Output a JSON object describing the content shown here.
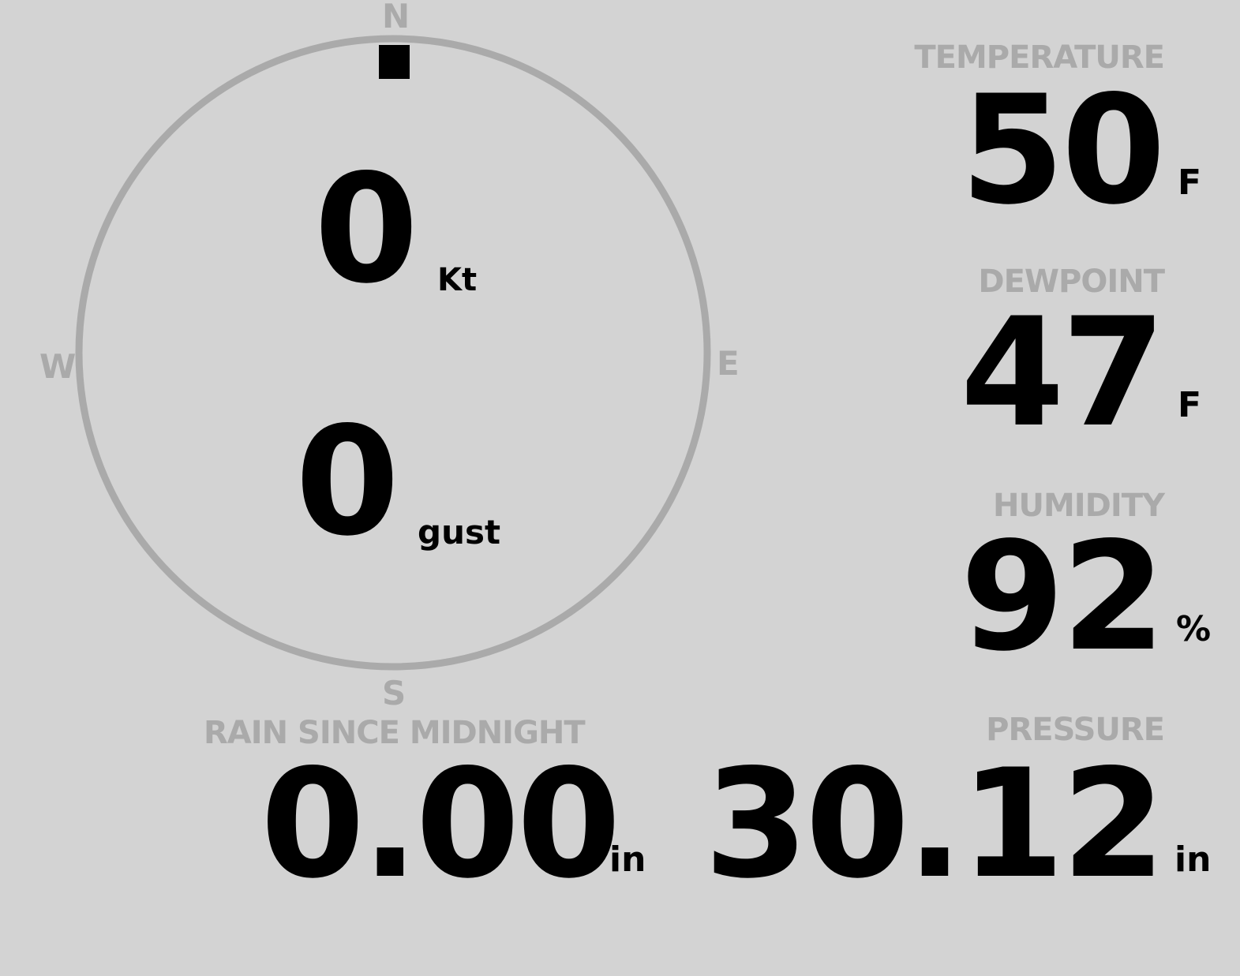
{
  "compass": {
    "north": "N",
    "south": "S",
    "east": "E",
    "west": "W",
    "wind_direction_deg": 0,
    "ring_color": "#aaaaaa",
    "wind_speed": "0",
    "wind_speed_unit": "Kt",
    "gust": "0",
    "gust_unit": "gust"
  },
  "temperature": {
    "label": "TEMPERATURE",
    "value": "50",
    "unit": "F"
  },
  "dewpoint": {
    "label": "DEWPOINT",
    "value": "47",
    "unit": "F"
  },
  "humidity": {
    "label": "HUMIDITY",
    "value": "92",
    "unit": "%"
  },
  "rain": {
    "label": "RAIN SINCE MIDNIGHT",
    "value": "0.00",
    "unit": "in"
  },
  "pressure": {
    "label": "PRESSURE",
    "value": "30.12",
    "unit": "in"
  }
}
